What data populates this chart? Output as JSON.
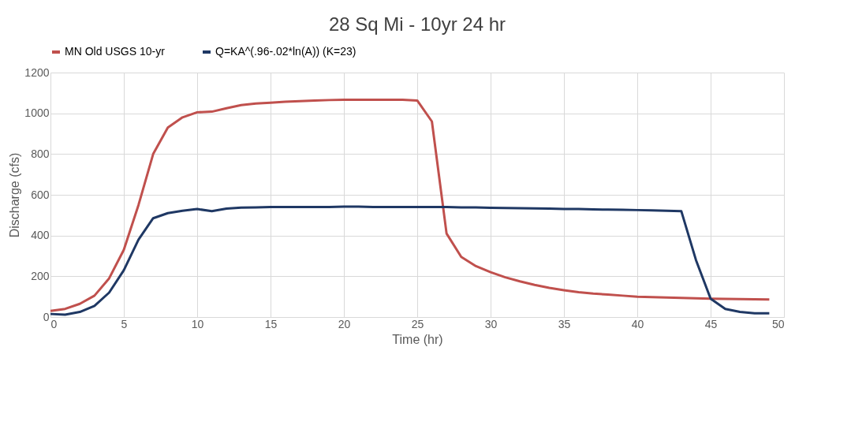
{
  "chart_data": {
    "type": "line",
    "title": "28 Sq Mi - 10yr 24 hr",
    "xlabel": "Time (hr)",
    "ylabel": "Discharge (cfs)",
    "x": [
      0,
      1,
      2,
      3,
      4,
      5,
      6,
      7,
      8,
      9,
      10,
      11,
      12,
      13,
      14,
      15,
      16,
      17,
      18,
      19,
      20,
      21,
      22,
      23,
      24,
      25,
      26,
      27,
      28,
      29,
      30,
      31,
      32,
      33,
      34,
      35,
      36,
      37,
      38,
      39,
      40,
      41,
      42,
      43,
      44,
      45,
      46,
      47,
      48,
      49
    ],
    "series": [
      {
        "name": "MN Old USGS 10-yr",
        "color": "#c0504d",
        "values": [
          30,
          40,
          65,
          105,
          190,
          330,
          550,
          800,
          930,
          980,
          1005,
          1008,
          1025,
          1040,
          1048,
          1052,
          1057,
          1060,
          1063,
          1065,
          1066,
          1066,
          1066,
          1066,
          1066,
          1063,
          960,
          410,
          295,
          250,
          220,
          195,
          175,
          158,
          143,
          132,
          122,
          115,
          110,
          105,
          100,
          98,
          96,
          94,
          92,
          90,
          89,
          88,
          87,
          86
        ]
      },
      {
        "name": "Q=KA^(.96-.02*ln(A)) (K=23)",
        "color": "#1f3864",
        "values": [
          15,
          12,
          25,
          55,
          120,
          230,
          380,
          485,
          510,
          522,
          530,
          520,
          532,
          537,
          538,
          540,
          540,
          540,
          540,
          540,
          542,
          542,
          540,
          540,
          540,
          540,
          540,
          540,
          538,
          538,
          536,
          535,
          534,
          533,
          532,
          530,
          530,
          528,
          527,
          526,
          525,
          524,
          522,
          520,
          280,
          90,
          40,
          25,
          18,
          18
        ]
      }
    ],
    "xlim": [
      0,
      50
    ],
    "xticks": [
      0,
      5,
      10,
      15,
      20,
      25,
      30,
      35,
      40,
      45,
      50
    ],
    "ylim": [
      0,
      1200
    ],
    "yticks": [
      0,
      200,
      400,
      600,
      800,
      1000,
      1200
    ],
    "grid": true,
    "legend": "top",
    "marker": "none",
    "line_style": "solid"
  }
}
